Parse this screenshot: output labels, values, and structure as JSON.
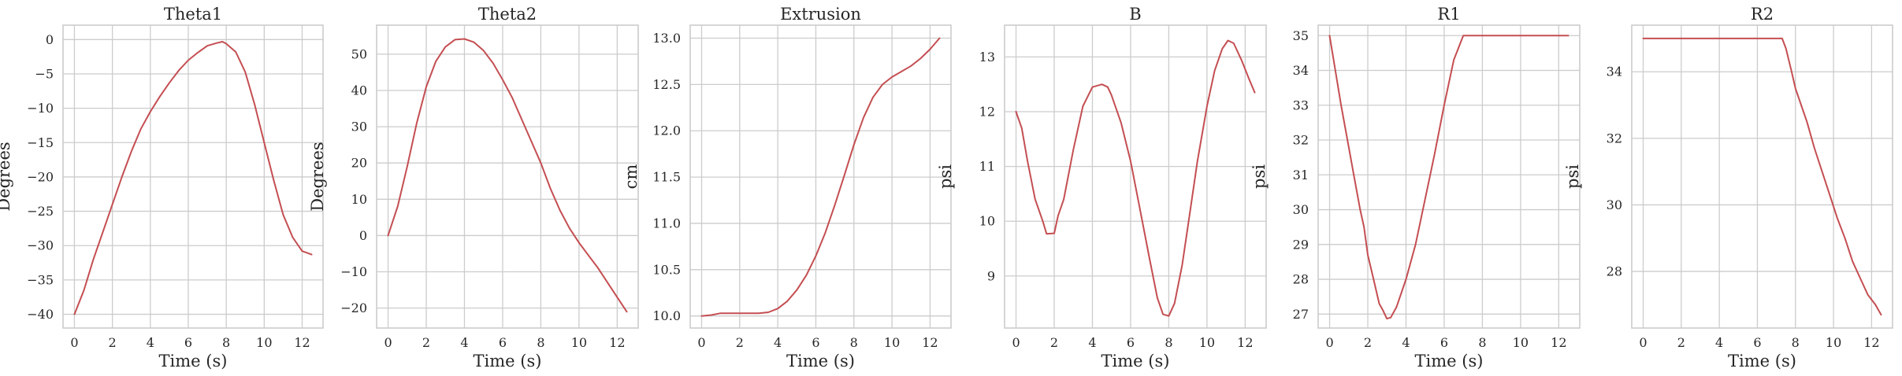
{
  "figure": {
    "background": "#ffffff",
    "grid_color": "#cccccc",
    "line_color": "#c44e52"
  },
  "chart_data": [
    {
      "type": "line",
      "title": "Theta1",
      "xlabel": "Time (s)",
      "ylabel": "Degrees",
      "xlim": [
        -0.6,
        13.1
      ],
      "ylim": [
        -42,
        2.1
      ],
      "xticks": [
        0,
        2,
        4,
        6,
        8,
        10,
        12
      ],
      "yticks": [
        -40,
        -35,
        -30,
        -25,
        -20,
        -15,
        -10,
        -5,
        0
      ],
      "grid": true,
      "series": [
        {
          "x": [
            0,
            0.5,
            1,
            1.5,
            2,
            2.5,
            3,
            3.5,
            4,
            4.5,
            5,
            5.5,
            6,
            6.5,
            7,
            7.5,
            7.8,
            8,
            8.5,
            9,
            9.5,
            10,
            10.5,
            11,
            11.5,
            12,
            12.5
          ],
          "values": [
            -40,
            -36.5,
            -32,
            -28,
            -24,
            -20,
            -16.3,
            -13,
            -10.5,
            -8.3,
            -6.3,
            -4.5,
            -3,
            -1.9,
            -0.9,
            -0.5,
            -0.3,
            -0.6,
            -1.8,
            -4.7,
            -9.5,
            -15,
            -20.5,
            -25.5,
            -28.8,
            -30.8,
            -31.3
          ]
        }
      ]
    },
    {
      "type": "line",
      "title": "Theta2",
      "xlabel": "Time (s)",
      "ylabel": "Degrees",
      "xlim": [
        -0.6,
        13.1
      ],
      "ylim": [
        -25.5,
        58
      ],
      "xticks": [
        0,
        2,
        4,
        6,
        8,
        10,
        12
      ],
      "yticks": [
        -20,
        -10,
        0,
        10,
        20,
        30,
        40,
        50
      ],
      "grid": true,
      "series": [
        {
          "x": [
            0,
            0.5,
            1,
            1.5,
            2,
            2.5,
            3,
            3.5,
            4,
            4.5,
            5,
            5.5,
            6,
            6.5,
            7,
            7.5,
            8,
            8.5,
            9,
            9.5,
            10,
            10.5,
            11,
            11.5,
            12,
            12.5
          ],
          "values": [
            0,
            8,
            19,
            31,
            41,
            48,
            52,
            54,
            54.2,
            53.3,
            51,
            47.5,
            43,
            38,
            32,
            26,
            20,
            13,
            7,
            2,
            -2,
            -5.5,
            -9,
            -13,
            -17,
            -21
          ]
        }
      ]
    },
    {
      "type": "line",
      "title": "Extrusion",
      "xlabel": "Time (s)",
      "ylabel": "cm",
      "xlim": [
        -0.6,
        13.1
      ],
      "ylim": [
        9.87,
        13.14
      ],
      "xticks": [
        0,
        2,
        4,
        6,
        8,
        10,
        12
      ],
      "yticks": [
        10.0,
        10.5,
        11.0,
        11.5,
        12.0,
        12.5,
        13.0
      ],
      "ytick_labels": [
        "10.0",
        "10.5",
        "11.0",
        "11.5",
        "12.0",
        "12.5",
        "13.0"
      ],
      "grid": true,
      "series": [
        {
          "x": [
            0,
            0.5,
            1,
            1.5,
            2,
            2.5,
            3,
            3.5,
            4,
            4.5,
            5,
            5.5,
            6,
            6.5,
            7,
            7.5,
            8,
            8.5,
            9,
            9.5,
            10,
            10.5,
            11,
            11.5,
            12,
            12.5
          ],
          "values": [
            10.0,
            10.01,
            10.03,
            10.03,
            10.03,
            10.03,
            10.03,
            10.04,
            10.08,
            10.16,
            10.28,
            10.44,
            10.65,
            10.9,
            11.2,
            11.52,
            11.85,
            12.14,
            12.36,
            12.5,
            12.58,
            12.64,
            12.7,
            12.78,
            12.88,
            13.0
          ]
        }
      ]
    },
    {
      "type": "line",
      "title": "B",
      "xlabel": "Time (s)",
      "ylabel": "psi",
      "xlim": [
        -0.6,
        13.1
      ],
      "ylim": [
        8.05,
        13.58
      ],
      "xticks": [
        0,
        2,
        4,
        6,
        8,
        10,
        12
      ],
      "yticks": [
        9,
        10,
        11,
        12,
        13
      ],
      "grid": true,
      "series": [
        {
          "x": [
            0,
            0.3,
            0.6,
            1,
            1.4,
            1.6,
            2,
            2.2,
            2.5,
            3,
            3.5,
            4,
            4.5,
            4.8,
            5,
            5.5,
            6,
            6.5,
            7,
            7.4,
            7.7,
            8,
            8.3,
            8.7,
            9,
            9.5,
            10,
            10.4,
            10.8,
            11.1,
            11.4,
            11.8,
            12.2,
            12.5
          ],
          "values": [
            12.0,
            11.7,
            11.1,
            10.4,
            10.0,
            9.77,
            9.78,
            10.1,
            10.4,
            11.3,
            12.1,
            12.45,
            12.5,
            12.45,
            12.3,
            11.8,
            11.1,
            10.2,
            9.3,
            8.6,
            8.3,
            8.27,
            8.5,
            9.2,
            9.9,
            11.1,
            12.1,
            12.75,
            13.15,
            13.3,
            13.25,
            12.95,
            12.6,
            12.35
          ]
        }
      ]
    },
    {
      "type": "line",
      "title": "R1",
      "xlabel": "Time (s)",
      "ylabel": "psi",
      "xlim": [
        -0.6,
        13.1
      ],
      "ylim": [
        26.6,
        35.3
      ],
      "xticks": [
        0,
        2,
        4,
        6,
        8,
        10,
        12
      ],
      "yticks": [
        27,
        28,
        29,
        30,
        31,
        32,
        33,
        34,
        35
      ],
      "grid": true,
      "series": [
        {
          "x": [
            0,
            0.3,
            0.6,
            1,
            1.3,
            1.6,
            1.8,
            2,
            2.3,
            2.6,
            2.8,
            3,
            3.2,
            3.5,
            4,
            4.5,
            5,
            5.5,
            6,
            6.5,
            7,
            7.3,
            7.5,
            8,
            9,
            10,
            11,
            12,
            12.5
          ],
          "values": [
            35.0,
            34.0,
            33.0,
            31.8,
            30.9,
            30.0,
            29.5,
            28.7,
            28.0,
            27.3,
            27.1,
            26.87,
            26.9,
            27.2,
            28.0,
            29.0,
            30.3,
            31.6,
            33.0,
            34.3,
            35.0,
            35.0,
            35.0,
            35.0,
            35.0,
            35.0,
            35.0,
            35.0,
            35.0
          ]
        }
      ]
    },
    {
      "type": "line",
      "title": "R2",
      "xlabel": "Time (s)",
      "ylabel": "psi",
      "xlim": [
        -0.6,
        13.1
      ],
      "ylim": [
        26.3,
        35.4
      ],
      "xticks": [
        0,
        2,
        4,
        6,
        8,
        10,
        12
      ],
      "yticks": [
        28,
        30,
        32,
        34
      ],
      "grid": true,
      "series": [
        {
          "x": [
            0,
            1,
            2,
            3,
            4,
            5,
            6,
            7,
            7.3,
            7.5,
            7.8,
            8,
            8.3,
            8.6,
            9,
            9.4,
            9.8,
            10.2,
            10.6,
            11,
            11.4,
            11.8,
            12.2,
            12.5
          ],
          "values": [
            35.0,
            35.0,
            35.0,
            35.0,
            35.0,
            35.0,
            35.0,
            35.0,
            35.0,
            34.7,
            34.0,
            33.5,
            33.0,
            32.5,
            31.7,
            31.0,
            30.3,
            29.6,
            29.0,
            28.3,
            27.8,
            27.3,
            27.0,
            26.7
          ]
        }
      ]
    }
  ]
}
